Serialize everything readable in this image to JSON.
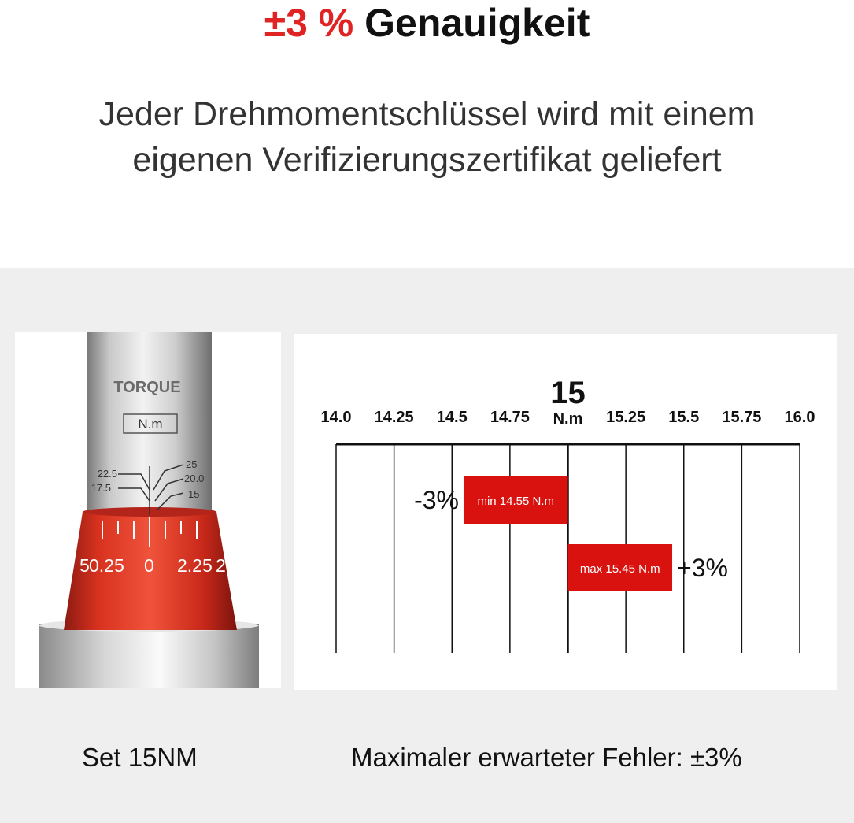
{
  "header": {
    "accent": "±3 %",
    "title": "Genauigkeit",
    "subtitle_line1": "Jeder Drehmomentschlüssel wird mit einem",
    "subtitle_line2": "eigenen Verifizierungszertifikat geliefert"
  },
  "photo": {
    "brand_text": "TORQUE",
    "unit_box": "N.m",
    "scale_left": [
      "22.5",
      "17.5"
    ],
    "scale_right": [
      "25",
      "20.0",
      "15"
    ],
    "dial_labels": [
      "5",
      "0.25",
      "0",
      "2.25",
      "2"
    ]
  },
  "chart_data": {
    "type": "bar",
    "orientation": "horizontal",
    "xlim": [
      14.0,
      16.0
    ],
    "x_ticks": [
      14.0,
      14.25,
      14.5,
      14.75,
      15.0,
      15.25,
      15.5,
      15.75,
      16.0
    ],
    "x_tick_labels": [
      "14.0",
      "14.25",
      "14.5",
      "14.75",
      "",
      "15.25",
      "15.5",
      "15.75",
      "16.0"
    ],
    "center_value": 15,
    "center_label": "15",
    "center_unit": "N.m",
    "grid": true,
    "bars": [
      {
        "start": 14.55,
        "end": 15.0,
        "label": "min 14.55 N.m",
        "side_label": "-3%",
        "side": "left"
      },
      {
        "start": 15.0,
        "end": 15.45,
        "label": "max 15.45 N.m",
        "side_label": "+3%",
        "side": "right"
      }
    ]
  },
  "colors": {
    "accent": "#e02424",
    "bar": "#d9120f",
    "panel": "#efefef"
  },
  "captions": {
    "left": "Set 15NM",
    "right": "Maximaler erwarteter Fehler: ±3%"
  }
}
